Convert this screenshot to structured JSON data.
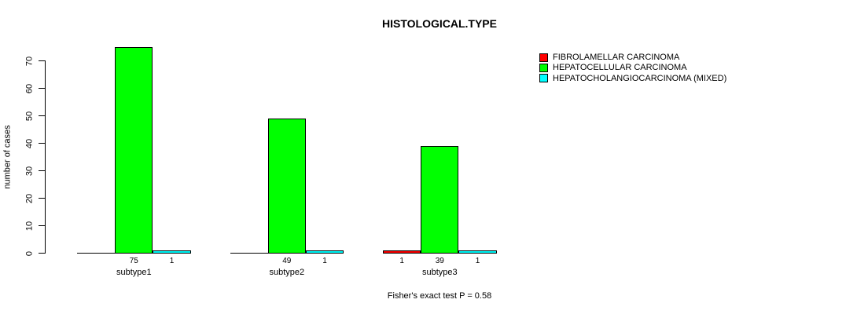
{
  "title": "HISTOLOGICAL.TYPE",
  "footer": "Fisher's exact test P = 0.58",
  "y_axis": {
    "label": "number of cases",
    "ticks": [
      0,
      10,
      20,
      30,
      40,
      50,
      60,
      70
    ]
  },
  "legend": [
    {
      "label": "FIBROLAMELLAR CARCINOMA",
      "color": "#ff0000"
    },
    {
      "label": "HEPATOCELLULAR CARCINOMA",
      "color": "#00ff00"
    },
    {
      "label": "HEPATOCHOLANGIOCARCINOMA (MIXED)",
      "color": "#00ffff"
    }
  ],
  "chart_data": {
    "type": "bar",
    "title": "HISTOLOGICAL.TYPE",
    "categories": [
      "subtype1",
      "subtype2",
      "subtype3"
    ],
    "series": [
      {
        "name": "FIBROLAMELLAR CARCINOMA",
        "color": "#ff0000",
        "values": [
          0,
          0,
          1
        ]
      },
      {
        "name": "HEPATOCELLULAR CARCINOMA",
        "color": "#00ff00",
        "values": [
          75,
          49,
          39
        ]
      },
      {
        "name": "HEPATOCHOLANGIOCARCINOMA (MIXED)",
        "color": "#00ffff",
        "values": [
          1,
          1,
          1
        ]
      }
    ],
    "bar_value_labels": [
      [
        "75",
        "1"
      ],
      [
        "49",
        "1"
      ],
      [
        "1",
        "39",
        "1"
      ]
    ],
    "xlabel": "",
    "ylabel": "number of cases",
    "ylim": [
      0,
      75
    ],
    "yticks": [
      0,
      10,
      20,
      30,
      40,
      50,
      60,
      70
    ],
    "grid": false,
    "legend_position": "top-right",
    "annotation": "Fisher's exact test P = 0.58"
  }
}
